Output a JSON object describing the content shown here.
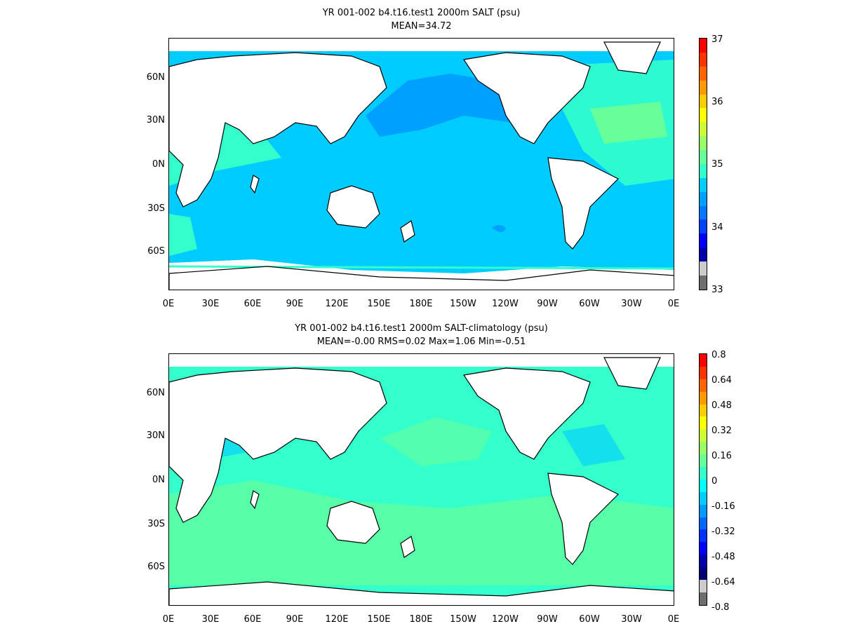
{
  "panels": [
    {
      "title_line1": "YR 001-002 b4.t16.test1 2000m SALT (psu)",
      "title_line2": "MEAN=34.72",
      "colorbar_labels": [
        "37",
        "36",
        "35",
        "34",
        "33"
      ],
      "colorbar_colors": [
        "#ff0000",
        "#ff3300",
        "#ff6600",
        "#ff9900",
        "#ffcc00",
        "#ffff00",
        "#ccff33",
        "#99ff66",
        "#66ff99",
        "#33ffcc",
        "#00ccff",
        "#00a0ff",
        "#0077ff",
        "#0040ff",
        "#0000ff",
        "#0000aa",
        "#cccccc",
        "#6e6e6e"
      ]
    },
    {
      "title_line1": "YR 001-002 b4.t16.test1 2000m SALT-climatology (psu)",
      "title_line2": "MEAN=-0.00   RMS=0.02   Max=1.06   Min=-0.51",
      "colorbar_labels": [
        "0.8",
        "0.64",
        "0.48",
        "0.32",
        "0.16",
        "0",
        "-0.16",
        "-0.32",
        "-0.48",
        "-0.64",
        "-0.8"
      ],
      "colorbar_colors": [
        "#ff0000",
        "#ff3300",
        "#ff6600",
        "#ff9900",
        "#ffcc00",
        "#ffff00",
        "#ccff33",
        "#99ff66",
        "#66ff99",
        "#33ffcc",
        "#00ffff",
        "#00ccff",
        "#0099ff",
        "#0066ff",
        "#0033ff",
        "#0000ff",
        "#0000aa",
        "#000077",
        "#cccccc",
        "#6e6e6e"
      ]
    }
  ],
  "axis": {
    "lat_labels": [
      "60N",
      "30N",
      "0N",
      "30S",
      "60S"
    ],
    "lon_labels": [
      "0E",
      "30E",
      "60E",
      "90E",
      "120E",
      "150E",
      "180E",
      "150W",
      "120W",
      "90W",
      "60W",
      "30W",
      "0E"
    ]
  },
  "colors": {
    "land": "#ffffff",
    "coast": "#000000",
    "ocean_salt": "#00ccff",
    "ocean_salt_low": "#00a0ff",
    "ocean_salt_high": "#66ff99",
    "ocean_salt_coast": "#33ffcc",
    "ocean_anom": "#33ffcc",
    "ocean_anom_pos": "#66ff99",
    "ocean_anom_neg": "#00ccff"
  }
}
